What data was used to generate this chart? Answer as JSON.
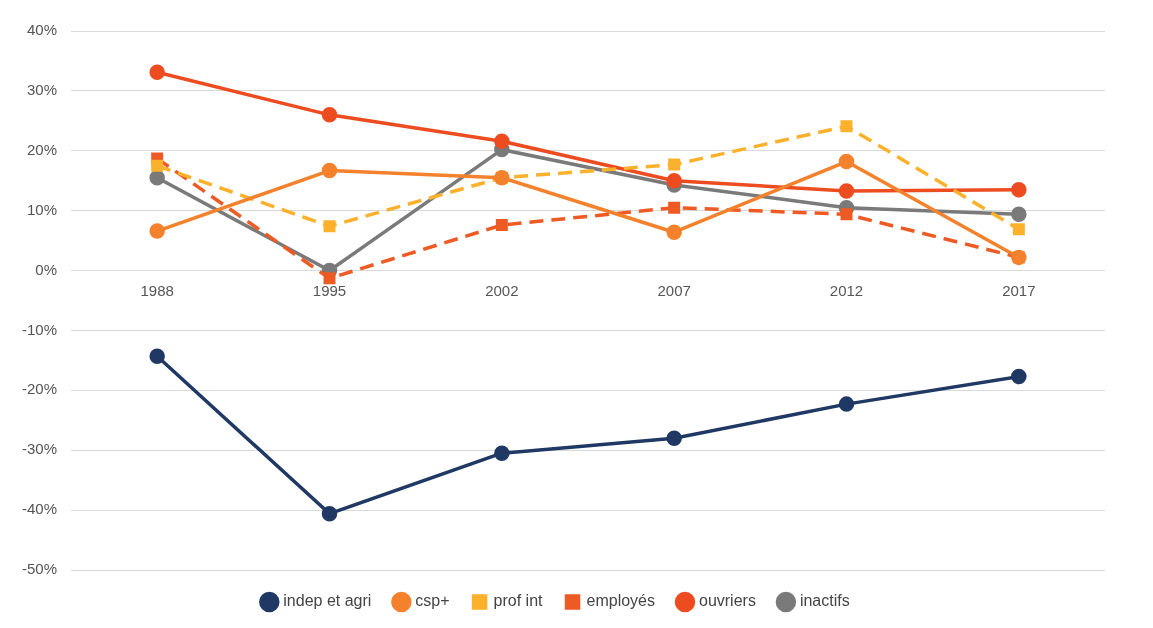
{
  "chart_data": {
    "type": "line",
    "categories": [
      "1988",
      "1995",
      "2002",
      "2007",
      "2012",
      "2017"
    ],
    "ylim": [
      -50,
      40
    ],
    "yticks": [
      {
        "value": -50,
        "label": "-50%"
      },
      {
        "value": -40,
        "label": "-40%"
      },
      {
        "value": -30,
        "label": "-30%"
      },
      {
        "value": -20,
        "label": "-20%"
      },
      {
        "value": -10,
        "label": "-10%"
      },
      {
        "value": 0,
        "label": "0%"
      },
      {
        "value": 10,
        "label": "10%"
      },
      {
        "value": 20,
        "label": "20%"
      },
      {
        "value": 30,
        "label": "30%"
      },
      {
        "value": 40,
        "label": "40%"
      }
    ],
    "grid": "y",
    "legend": "bottom",
    "series": [
      {
        "name": "indep et agri",
        "color": "#1f3864",
        "marker": "circle",
        "line_style": "solid",
        "values": [
          -14.3,
          -40.6,
          -30.5,
          -28,
          -22.3,
          -17.7
        ]
      },
      {
        "name": "csp+",
        "color": "#f4812c",
        "marker": "circle",
        "line_style": "solid",
        "values": [
          6.6,
          16.7,
          15.5,
          6.4,
          18.2,
          2.2
        ]
      },
      {
        "name": "prof int",
        "color": "#fbb12b",
        "marker": "square",
        "line_style": "dashed",
        "values": [
          17.5,
          7.4,
          15.5,
          17.7,
          24.1,
          6.9
        ]
      },
      {
        "name": "employés",
        "color": "#ee5a24",
        "marker": "square",
        "line_style": "dashed",
        "values": [
          18.7,
          -1.3,
          7.6,
          10.5,
          9.4,
          2.2
        ]
      },
      {
        "name": "ouvriers",
        "color": "#ec4c20",
        "marker": "circle",
        "line_style": "solid",
        "values": [
          33.1,
          26,
          21.6,
          15,
          13.3,
          13.5
        ]
      },
      {
        "name": "inactifs",
        "color": "#7a7a7a",
        "marker": "circle",
        "line_style": "solid",
        "values": [
          15.5,
          0,
          20.2,
          14.3,
          10.5,
          9.4
        ]
      }
    ]
  }
}
